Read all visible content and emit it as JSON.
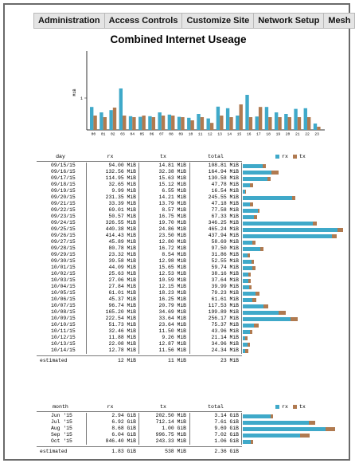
{
  "nav": {
    "tabs": [
      "Administration",
      "Access Controls",
      "Customize Site",
      "Network Setup",
      "Mesh"
    ]
  },
  "title": "Combined Internet Useage",
  "colors": {
    "rx": "#3fa9c9",
    "tx": "#b07a50"
  },
  "chart_data": {
    "type": "bar",
    "ylabel": "MiB",
    "ytick": "1",
    "categories": [
      "00",
      "01",
      "02",
      "03",
      "04",
      "05",
      "06",
      "07",
      "08",
      "09",
      "10",
      "11",
      "12",
      "13",
      "14",
      "15",
      "16",
      "17",
      "18",
      "19",
      "20",
      "21",
      "22",
      "23"
    ],
    "series": [
      {
        "name": "rx",
        "values": [
          0.72,
          0.55,
          0.62,
          1.3,
          0.43,
          0.41,
          0.43,
          0.55,
          0.48,
          0.41,
          0.38,
          0.5,
          0.36,
          0.73,
          0.68,
          0.45,
          1.1,
          0.42,
          0.72,
          0.55,
          0.5,
          0.66,
          0.68,
          0.2
        ]
      },
      {
        "name": "tx",
        "values": [
          0.45,
          0.4,
          0.7,
          0.45,
          0.4,
          0.45,
          0.4,
          0.45,
          0.45,
          0.4,
          0.3,
          0.4,
          0.22,
          0.45,
          0.4,
          0.8,
          0.4,
          0.72,
          0.4,
          0.4,
          0.4,
          0.4,
          0.4,
          0.1
        ]
      }
    ]
  },
  "daily": {
    "headers": {
      "day": "day",
      "rx": "rx",
      "tx": "tx",
      "total": "total"
    },
    "legend": {
      "rx": "rx",
      "tx": "tx"
    },
    "rows": [
      {
        "day": "09/15/15",
        "rx": "94.00 MiB",
        "tx": "14.81 MiB",
        "total": "108.81 MiB",
        "rxv": 94.0,
        "txv": 14.81
      },
      {
        "day": "09/16/15",
        "rx": "132.56 MiB",
        "tx": "32.38 MiB",
        "total": "164.94 MiB",
        "rxv": 132.56,
        "txv": 32.38
      },
      {
        "day": "09/17/15",
        "rx": "114.95 MiB",
        "tx": "15.63 MiB",
        "total": "130.58 MiB",
        "rxv": 114.95,
        "txv": 15.63
      },
      {
        "day": "09/18/15",
        "rx": "32.65 MiB",
        "tx": "15.12 MiB",
        "total": "47.78 MiB",
        "rxv": 32.65,
        "txv": 15.12
      },
      {
        "day": "09/19/15",
        "rx": "9.99 MiB",
        "tx": "6.55 MiB",
        "total": "16.54 MiB",
        "rxv": 9.99,
        "txv": 6.55
      },
      {
        "day": "09/20/15",
        "rx": "231.35 MiB",
        "tx": "14.21 MiB",
        "total": "245.55 MiB",
        "rxv": 231.35,
        "txv": 14.21
      },
      {
        "day": "09/21/15",
        "rx": "33.39 MiB",
        "tx": "13.79 MiB",
        "total": "47.18 MiB",
        "rxv": 33.39,
        "txv": 13.79
      },
      {
        "day": "09/22/15",
        "rx": "69.01 MiB",
        "tx": "8.57 MiB",
        "total": "77.58 MiB",
        "rxv": 69.01,
        "txv": 8.57
      },
      {
        "day": "09/23/15",
        "rx": "50.57 MiB",
        "tx": "16.75 MiB",
        "total": "67.33 MiB",
        "rxv": 50.57,
        "txv": 16.75
      },
      {
        "day": "09/24/15",
        "rx": "326.55 MiB",
        "tx": "19.70 MiB",
        "total": "346.25 MiB",
        "rxv": 326.55,
        "txv": 19.7
      },
      {
        "day": "09/25/15",
        "rx": "440.38 MiB",
        "tx": "24.86 MiB",
        "total": "465.24 MiB",
        "rxv": 440.38,
        "txv": 24.86
      },
      {
        "day": "09/26/15",
        "rx": "414.43 MiB",
        "tx": "23.50 MiB",
        "total": "437.94 MiB",
        "rxv": 414.43,
        "txv": 23.5
      },
      {
        "day": "09/27/15",
        "rx": "45.89 MiB",
        "tx": "12.80 MiB",
        "total": "58.69 MiB",
        "rxv": 45.89,
        "txv": 12.8
      },
      {
        "day": "09/28/15",
        "rx": "80.78 MiB",
        "tx": "16.72 MiB",
        "total": "97.50 MiB",
        "rxv": 80.78,
        "txv": 16.72
      },
      {
        "day": "09/29/15",
        "rx": "23.32 MiB",
        "tx": "8.54 MiB",
        "total": "31.86 MiB",
        "rxv": 23.32,
        "txv": 8.54
      },
      {
        "day": "09/30/15",
        "rx": "39.58 MiB",
        "tx": "12.98 MiB",
        "total": "52.55 MiB",
        "rxv": 39.58,
        "txv": 12.98
      },
      {
        "day": "10/01/15",
        "rx": "44.09 MiB",
        "tx": "15.65 MiB",
        "total": "59.74 MiB",
        "rxv": 44.09,
        "txv": 15.65
      },
      {
        "day": "10/02/15",
        "rx": "25.63 MiB",
        "tx": "12.53 MiB",
        "total": "38.16 MiB",
        "rxv": 25.63,
        "txv": 12.53
      },
      {
        "day": "10/03/15",
        "rx": "27.06 MiB",
        "tx": "10.59 MiB",
        "total": "37.64 MiB",
        "rxv": 27.06,
        "txv": 10.59
      },
      {
        "day": "10/04/15",
        "rx": "27.84 MiB",
        "tx": "12.15 MiB",
        "total": "39.99 MiB",
        "rxv": 27.84,
        "txv": 12.15
      },
      {
        "day": "10/05/15",
        "rx": "61.01 MiB",
        "tx": "18.23 MiB",
        "total": "79.23 MiB",
        "rxv": 61.01,
        "txv": 18.23
      },
      {
        "day": "10/06/15",
        "rx": "45.37 MiB",
        "tx": "16.25 MiB",
        "total": "61.61 MiB",
        "rxv": 45.37,
        "txv": 16.25
      },
      {
        "day": "10/07/15",
        "rx": "96.74 MiB",
        "tx": "20.79 MiB",
        "total": "117.53 MiB",
        "rxv": 96.74,
        "txv": 20.79
      },
      {
        "day": "10/08/15",
        "rx": "165.20 MiB",
        "tx": "34.69 MiB",
        "total": "199.89 MiB",
        "rxv": 165.2,
        "txv": 34.69
      },
      {
        "day": "10/09/15",
        "rx": "222.54 MiB",
        "tx": "33.64 MiB",
        "total": "256.17 MiB",
        "rxv": 222.54,
        "txv": 33.64
      },
      {
        "day": "10/10/15",
        "rx": "51.73 MiB",
        "tx": "23.64 MiB",
        "total": "75.37 MiB",
        "rxv": 51.73,
        "txv": 23.64
      },
      {
        "day": "10/11/15",
        "rx": "32.46 MiB",
        "tx": "11.50 MiB",
        "total": "43.96 MiB",
        "rxv": 32.46,
        "txv": 11.5
      },
      {
        "day": "10/12/15",
        "rx": "11.88 MiB",
        "tx": "9.26 MiB",
        "total": "21.14 MiB",
        "rxv": 11.88,
        "txv": 9.26
      },
      {
        "day": "10/13/15",
        "rx": "22.08 MiB",
        "tx": "12.87 MiB",
        "total": "34.96 MiB",
        "rxv": 22.08,
        "txv": 12.87
      },
      {
        "day": "10/14/15",
        "rx": "12.78 MiB",
        "tx": "11.56 MiB",
        "total": "24.34 MiB",
        "rxv": 12.78,
        "txv": 11.56
      }
    ],
    "estimated": {
      "label": "estimated",
      "rx": "12 MiB",
      "tx": "11 MiB",
      "total": "23 MiB"
    }
  },
  "monthly": {
    "headers": {
      "month": "month",
      "rx": "rx",
      "tx": "tx",
      "total": "total"
    },
    "legend": {
      "rx": "rx",
      "tx": "tx"
    },
    "rows": [
      {
        "month": "Jun '15",
        "rx": "2.94 GiB",
        "tx": "202.50 MiB",
        "total": "3.14 GiB",
        "rxv": 2.94,
        "txv": 0.2
      },
      {
        "month": "Jul '15",
        "rx": "6.92 GiB",
        "tx": "712.14 MiB",
        "total": "7.61 GiB",
        "rxv": 6.92,
        "txv": 0.7
      },
      {
        "month": "Aug '15",
        "rx": "8.68 GiB",
        "tx": "1.00 GiB",
        "total": "9.69 GiB",
        "rxv": 8.68,
        "txv": 1.0
      },
      {
        "month": "Sep '15",
        "rx": "6.04 GiB",
        "tx": "996.75 MiB",
        "total": "7.02 GiB",
        "rxv": 6.04,
        "txv": 0.97
      },
      {
        "month": "Oct '15",
        "rx": "846.40 MiB",
        "tx": "243.33 MiB",
        "total": "1.06 GiB",
        "rxv": 0.83,
        "txv": 0.24
      }
    ],
    "estimated": {
      "label": "estimated",
      "rx": "1.83 GiB",
      "tx": "538 MiB",
      "total": "2.36 GiB"
    }
  }
}
